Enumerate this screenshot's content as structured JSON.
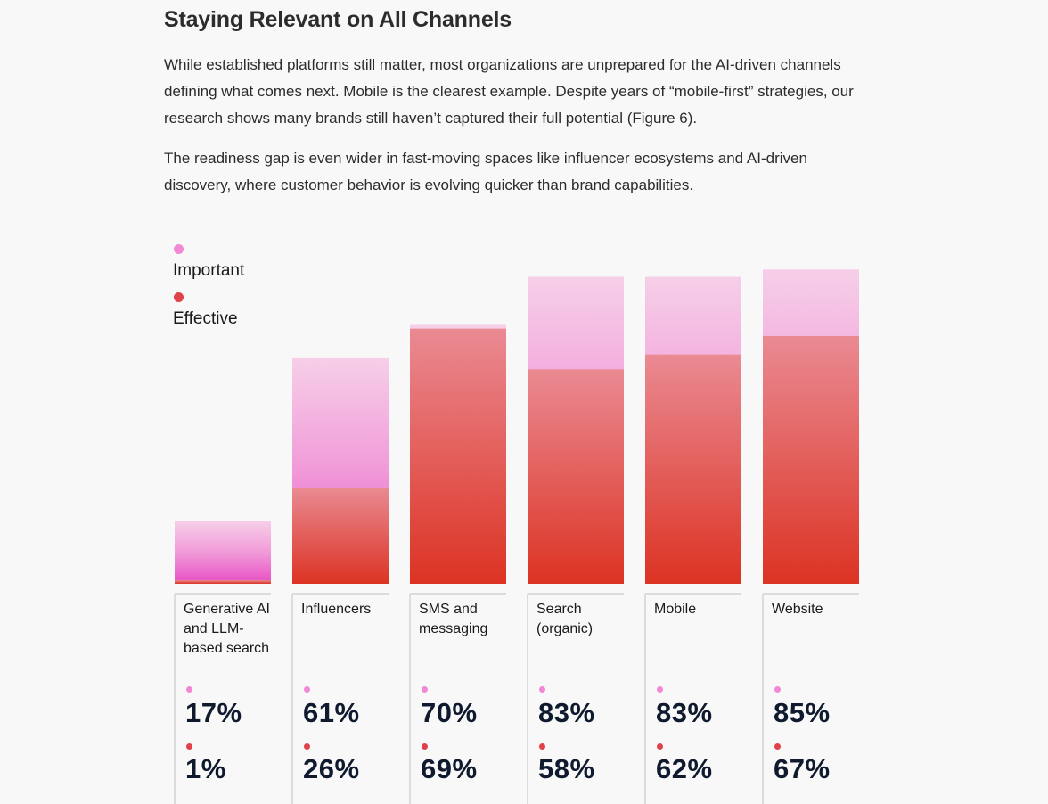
{
  "header": {
    "title": "Staying Relevant on All Channels",
    "paragraph1": "While established platforms still matter, most organizations are unprepared for the AI-driven channels defining what comes next. Mobile is the clearest example. Despite years of “mobile-first” strategies, our research shows many brands still haven’t captured their full potential (Figure 6).",
    "paragraph2": "The readiness gap is even wider in fast-moving spaces like influencer ecosystems and AI-driven discovery, where customer behavior is evolving quicker than brand capabilities."
  },
  "colors": {
    "important": "#ee5fc8",
    "effective": "#e03a32",
    "important_dot": "#f088d6",
    "effective_dot": "#e0424a"
  },
  "chart_data": {
    "type": "bar",
    "title": "",
    "legend": [
      "Important",
      "Effective"
    ],
    "legend_position": "top-left",
    "categories": [
      "Generative AI and LLM-based search",
      "Influencers",
      "SMS and messaging",
      "Search (organic)",
      "Mobile",
      "Website"
    ],
    "series": [
      {
        "name": "Important",
        "values": [
          17,
          61,
          70,
          83,
          83,
          85
        ]
      },
      {
        "name": "Effective",
        "values": [
          1,
          26,
          69,
          58,
          62,
          67
        ]
      }
    ],
    "value_labels": {
      "important": [
        "17%",
        "61%",
        "70%",
        "83%",
        "83%",
        "85%"
      ],
      "effective": [
        "1%",
        "26%",
        "69%",
        "58%",
        "62%",
        "67%"
      ]
    },
    "ylim": [
      0,
      100
    ],
    "grid": false
  }
}
